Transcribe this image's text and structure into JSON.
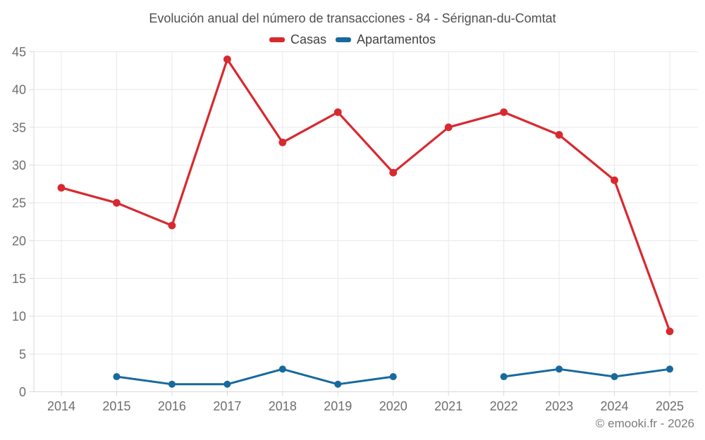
{
  "header": {
    "title": "Evolución anual del número de transacciones - 84 - Sérignan-du-Comtat"
  },
  "footer": {
    "credit": "© emooki.fr - 2026"
  },
  "colors": {
    "background": "#ffffff",
    "grid": "#e8e8e8",
    "axis": "#d9d9d9",
    "tick_label": "#6e6e6e",
    "title_text": "#4f4f4f",
    "legend_text": "#424242",
    "footer_text": "#7b7b7b"
  },
  "chart_data": {
    "type": "line",
    "title": "Evolución anual del número de transacciones - 84 - Sérignan-du-Comtat",
    "categories": [
      "2014",
      "2015",
      "2016",
      "2017",
      "2018",
      "2019",
      "2020",
      "2021",
      "2022",
      "2023",
      "2024",
      "2025"
    ],
    "series": [
      {
        "name": "Casas",
        "color": "#d8292f",
        "values": [
          27,
          25,
          22,
          44,
          33,
          37,
          29,
          35,
          37,
          34,
          28,
          8
        ]
      },
      {
        "name": "Apartamentos",
        "color": "#17699e",
        "values": [
          null,
          2,
          1,
          1,
          3,
          1,
          2,
          null,
          2,
          3,
          2,
          3
        ]
      }
    ],
    "xlabel": "",
    "ylabel": "",
    "ylim": [
      0,
      45
    ],
    "ytick_step": 5,
    "grid": true,
    "legend_position": "top"
  }
}
